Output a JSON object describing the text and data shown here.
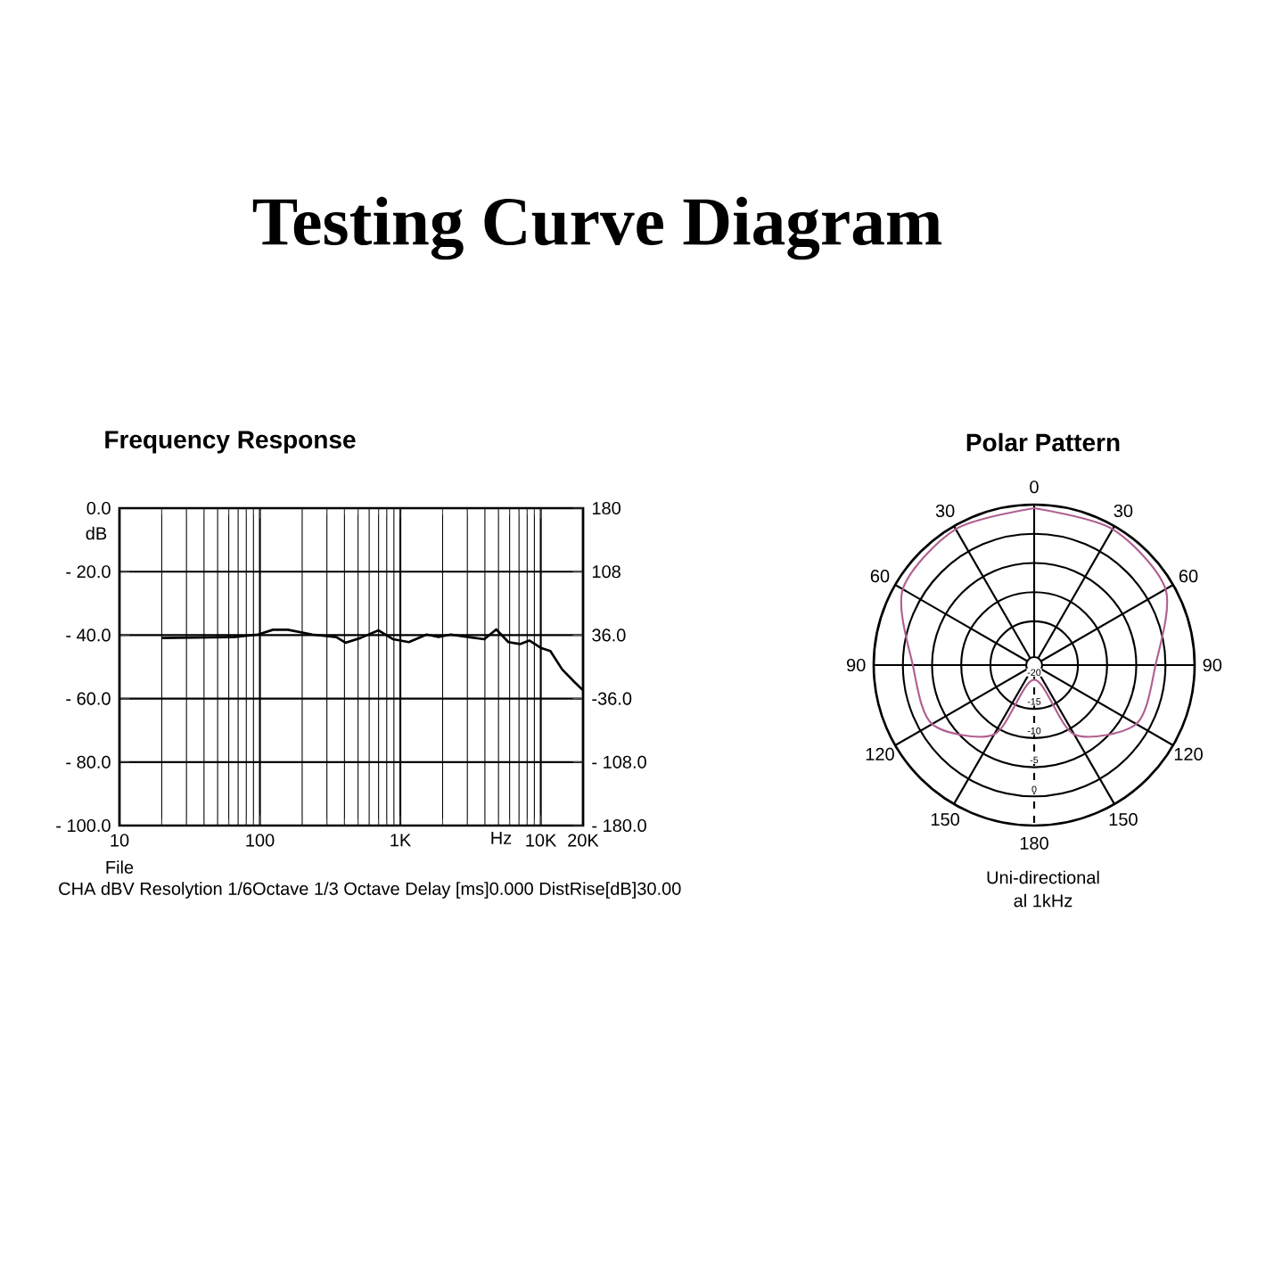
{
  "chart_data": [
    {
      "type": "line",
      "title": "Testing Curve Diagram",
      "subtitle": "Frequency Response",
      "ylabel": "dB",
      "annotations": [
        "File",
        "Hz",
        "CHA dBV Resolytion 1/6Octave 1/3 Octave Delay [ms]0.000 DistRise[dB]30.00"
      ],
      "log": "x",
      "grid": true,
      "xlim": [
        10,
        20000
      ],
      "xticks": [
        10,
        100,
        {
          "value": 1000,
          "label": "1K"
        },
        {
          "value": 10000,
          "label": "10K"
        },
        {
          "value": 20000,
          "label": "20K"
        }
      ],
      "ylim": [
        -100,
        0
      ],
      "yticks": [
        {
          "value": -100,
          "label": "- 100.0"
        },
        {
          "value": -80,
          "label": "- 80.0"
        },
        {
          "value": -60,
          "label": "- 60.0"
        },
        {
          "value": -40,
          "label": "- 40.0"
        },
        {
          "value": -20,
          "label": "- 20.0"
        },
        {
          "value": 0,
          "label": "0.0"
        }
      ],
      "y2lim": [
        -180,
        180
      ],
      "y2ticks": [
        {
          "value": -180,
          "label": "- 180.0"
        },
        {
          "value": -108,
          "label": "- 108.0"
        },
        {
          "value": -36,
          "label": "-36.0"
        },
        {
          "value": 36,
          "label": "36.0"
        },
        108,
        180
      ],
      "series": [
        {
          "color": "#000000",
          "x": [
            20,
            65,
            97,
            124,
            158,
            236,
            350,
            407,
            520,
            700,
            890,
            1150,
            1540,
            1870,
            2280,
            3070,
            3960,
            4820,
            5880,
            7110,
            8280,
            10000,
            11700,
            14200,
            17300,
            20000
          ],
          "values": [
            -40.9,
            -40.6,
            -39.8,
            -38.3,
            -38.3,
            -39.8,
            -40.6,
            -42.4,
            -40.9,
            -38.5,
            -41.3,
            -42.2,
            -39.8,
            -40.6,
            -39.8,
            -40.6,
            -41.3,
            -38.2,
            -42.2,
            -42.8,
            -41.7,
            -44.0,
            -45.0,
            -50.8,
            -54.7,
            -57.4
          ]
        }
      ]
    },
    {
      "type": "radar",
      "title": "Polar Pattern",
      "annotations": [
        "Uni-directional",
        "al 1kHz"
      ],
      "categories": [
        "0",
        "30",
        "60",
        "90",
        "120",
        "150",
        "180",
        "150",
        "120",
        "90",
        "60",
        "30"
      ],
      "ylim": [
        -22.5,
        5
      ],
      "yticks": [
        -20,
        -15,
        -10,
        -5,
        0
      ],
      "series": [
        {
          "color": "#b06090",
          "values": [
            4.4,
            4.4,
            3.5,
            -1.7,
            -2.3,
            -8.8,
            -20,
            -8.8,
            -2.3,
            -1.7,
            3.5,
            4.4
          ]
        }
      ]
    }
  ]
}
